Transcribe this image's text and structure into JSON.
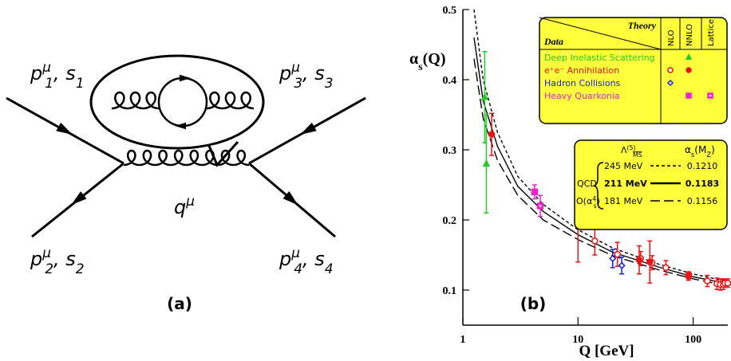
{
  "diagram": {
    "labels": [
      [
        {
          "t": "p"
        },
        {
          "t": "μ",
          "sup": true
        },
        {
          "t": "1",
          "sub": true
        },
        {
          "t": ", s"
        },
        {
          "t": "1",
          "sub": true
        }
      ],
      [
        {
          "t": "p"
        },
        {
          "t": "μ",
          "sup": true
        },
        {
          "t": "3",
          "sub": true
        },
        {
          "t": ", s"
        },
        {
          "t": "3",
          "sub": true
        }
      ],
      [
        {
          "t": "p"
        },
        {
          "t": "μ",
          "sup": true
        },
        {
          "t": "2",
          "sub": true
        },
        {
          "t": ", s"
        },
        {
          "t": "2",
          "sub": true
        }
      ],
      [
        {
          "t": "p"
        },
        {
          "t": "μ",
          "sup": true
        },
        {
          "t": "4",
          "sub": true
        },
        {
          "t": ", s"
        },
        {
          "t": "4",
          "sub": true
        }
      ],
      [
        {
          "t": "q"
        },
        {
          "t": "μ",
          "sup": true
        }
      ]
    ],
    "caption": "(a)"
  },
  "chart_data": {
    "type": "scatter",
    "caption": "(b)",
    "xlabel": "Q [GeV]",
    "ylabel": [
      {
        "t": "α"
      },
      {
        "t": "s",
        "sub": true
      },
      {
        "t": "(Q)"
      }
    ],
    "log_x": true,
    "xlim": [
      1,
      200
    ],
    "xticks": [
      1,
      10,
      100
    ],
    "ylim": [
      0.05,
      0.5
    ],
    "yticks": [
      0.1,
      0.2,
      0.3,
      0.4,
      0.5
    ],
    "legend": {
      "theory": "Theory",
      "data": "Data",
      "columns": [
        "NLO",
        "NNLO",
        "Lattice"
      ]
    },
    "series": [
      {
        "name": "Deep Inelastic Scattering",
        "color": "#22cc22",
        "column": "NNLO",
        "marker": "triangle",
        "filled": true,
        "x": [
          1.55,
          1.6
        ],
        "values": [
          0.375,
          0.28
        ],
        "errors": [
          0.065,
          0.07
        ]
      },
      {
        "name": "e⁺e⁻ Annihilation",
        "color": "#ee1111",
        "column": "NLO",
        "marker": "circle",
        "filled": false,
        "x": [
          14,
          22,
          35,
          44,
          58,
          91.2,
          133,
          161,
          172,
          183,
          189,
          200
        ],
        "values": [
          0.17,
          0.151,
          0.145,
          0.139,
          0.132,
          0.12,
          0.113,
          0.109,
          0.108,
          0.108,
          0.11,
          0.11
        ],
        "errors": [
          0.02,
          0.017,
          0.01,
          0.01,
          0.01,
          0.006,
          0.008,
          0.008,
          0.008,
          0.007,
          0.006,
          0.006
        ]
      },
      {
        "name": "e⁺e⁻ Annihilation",
        "color": "#ee1111",
        "column": "NNLO",
        "marker": "circle",
        "filled": true,
        "x": [
          1.777,
          10,
          34,
          42,
          91.2
        ],
        "values": [
          0.322,
          0.2,
          0.143,
          0.14,
          0.121
        ],
        "errors": [
          0.03,
          0.06,
          0.02,
          0.03,
          0.005
        ]
      },
      {
        "name": "Hadron Collisions",
        "color": "#1122dd",
        "column": "NLO",
        "marker": "diamond",
        "filled": false,
        "x": [
          20,
          24
        ],
        "values": [
          0.145,
          0.135
        ],
        "errors": [
          0.013,
          0.012
        ]
      },
      {
        "name": "Heavy Quarkonia",
        "color": "#ee22cc",
        "column": "NNLO",
        "marker": "square",
        "filled": true,
        "x": [
          4.2
        ],
        "values": [
          0.24
        ],
        "errors": [
          0.01
        ]
      },
      {
        "name": "Heavy Quarkonia",
        "color": "#ee22cc",
        "column": "Lattice",
        "marker": "lattice",
        "filled": true,
        "x": [
          4.7
        ],
        "values": [
          0.22
        ],
        "errors": [
          0.015
        ]
      }
    ],
    "curves_header": {
      "lambda": [
        {
          "t": "Λ"
        },
        {
          "t": "(5)",
          "sup": true
        },
        {
          "t": "MS",
          "sub": true,
          "over": true
        }
      ],
      "alpha": [
        {
          "t": "α"
        },
        {
          "t": "s",
          "sub": true
        },
        {
          "t": "(M"
        },
        {
          "t": "Z",
          "sub": true
        },
        {
          "t": ")"
        }
      ],
      "qcd": "QCD",
      "order": [
        {
          "t": "O(α"
        },
        {
          "t": "4",
          "sup": true
        },
        {
          "t": "s",
          "sub": true
        },
        {
          "t": ")"
        }
      ]
    },
    "curves": [
      {
        "name": "245 MeV",
        "alpha_label": "0.1210",
        "style": "short-dash",
        "bold": false,
        "x": [
          1.25,
          1.5,
          2,
          3,
          5,
          10,
          20,
          50,
          100,
          200
        ],
        "values": [
          0.5,
          0.4,
          0.325,
          0.262,
          0.222,
          0.186,
          0.16,
          0.137,
          0.123,
          0.112
        ]
      },
      {
        "name": "211 MeV",
        "alpha_label": "0.1183",
        "style": "solid",
        "bold": true,
        "x": [
          1.25,
          1.5,
          2,
          3,
          5,
          10,
          20,
          50,
          100,
          200
        ],
        "values": [
          0.46,
          0.37,
          0.305,
          0.248,
          0.212,
          0.179,
          0.154,
          0.133,
          0.119,
          0.109
        ]
      },
      {
        "name": "181 MeV",
        "alpha_label": "0.1156",
        "style": "long-dash",
        "bold": false,
        "x": [
          1.25,
          1.5,
          2,
          3,
          5,
          10,
          20,
          50,
          100,
          200
        ],
        "values": [
          0.43,
          0.345,
          0.285,
          0.235,
          0.2,
          0.172,
          0.149,
          0.129,
          0.116,
          0.106
        ]
      }
    ]
  }
}
